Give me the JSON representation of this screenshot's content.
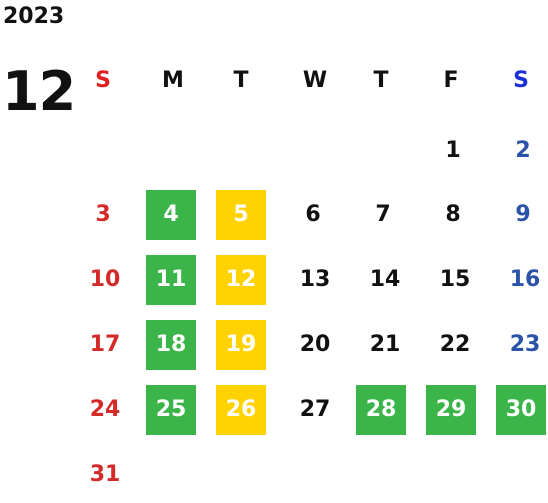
{
  "calendar": {
    "year": "2023",
    "month": "12",
    "weekdays": [
      "S",
      "M",
      "T",
      "W",
      "T",
      "F",
      "S"
    ],
    "highlight_colors": {
      "green": "#3bb54a",
      "yellow": "#ffd200",
      "sunday_text": "#d42a2a",
      "saturday_text": "#2a52a8"
    },
    "weeks": [
      [
        "",
        "",
        "",
        "",
        "",
        "1",
        "2"
      ],
      [
        "3",
        "4",
        "5",
        "6",
        "7",
        "8",
        "9"
      ],
      [
        "10",
        "11",
        "12",
        "13",
        "14",
        "15",
        "16"
      ],
      [
        "17",
        "18",
        "19",
        "20",
        "21",
        "22",
        "23"
      ],
      [
        "24",
        "25",
        "26",
        "27",
        "28",
        "29",
        "30"
      ],
      [
        "31",
        "",
        "",
        "",
        "",
        "",
        ""
      ]
    ],
    "highlighted_green": [
      "4",
      "11",
      "18",
      "25",
      "28",
      "29",
      "30"
    ],
    "highlighted_yellow": [
      "5",
      "12",
      "19",
      "26"
    ]
  }
}
